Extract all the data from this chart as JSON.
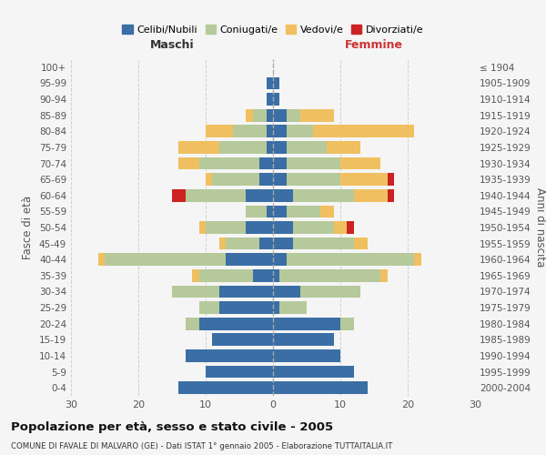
{
  "age_groups": [
    "0-4",
    "5-9",
    "10-14",
    "15-19",
    "20-24",
    "25-29",
    "30-34",
    "35-39",
    "40-44",
    "45-49",
    "50-54",
    "55-59",
    "60-64",
    "65-69",
    "70-74",
    "75-79",
    "80-84",
    "85-89",
    "90-94",
    "95-99",
    "100+"
  ],
  "birth_years": [
    "2000-2004",
    "1995-1999",
    "1990-1994",
    "1985-1989",
    "1980-1984",
    "1975-1979",
    "1970-1974",
    "1965-1969",
    "1960-1964",
    "1955-1959",
    "1950-1954",
    "1945-1949",
    "1940-1944",
    "1935-1939",
    "1930-1934",
    "1925-1929",
    "1920-1924",
    "1915-1919",
    "1910-1914",
    "1905-1909",
    "≤ 1904"
  ],
  "colors": {
    "celibi": "#3a6ea5",
    "coniugati": "#b5c99a",
    "vedovi": "#f0c060",
    "divorziati": "#cc2222"
  },
  "males": {
    "celibi": [
      14,
      10,
      13,
      9,
      11,
      8,
      8,
      3,
      7,
      2,
      4,
      1,
      4,
      2,
      2,
      1,
      1,
      1,
      1,
      1,
      0
    ],
    "coniugati": [
      0,
      0,
      0,
      0,
      2,
      3,
      7,
      8,
      18,
      5,
      6,
      3,
      9,
      7,
      9,
      7,
      5,
      2,
      0,
      0,
      0
    ],
    "vedovi": [
      0,
      0,
      0,
      0,
      0,
      0,
      0,
      1,
      1,
      1,
      1,
      0,
      0,
      1,
      3,
      6,
      4,
      1,
      0,
      0,
      0
    ],
    "divorziati": [
      0,
      0,
      0,
      0,
      0,
      0,
      0,
      0,
      0,
      0,
      0,
      0,
      2,
      0,
      0,
      0,
      0,
      0,
      0,
      0,
      0
    ]
  },
  "females": {
    "celibi": [
      14,
      12,
      10,
      9,
      10,
      1,
      4,
      1,
      2,
      3,
      3,
      2,
      3,
      2,
      2,
      2,
      2,
      2,
      1,
      1,
      0
    ],
    "coniugati": [
      0,
      0,
      0,
      0,
      2,
      4,
      9,
      15,
      19,
      9,
      6,
      5,
      9,
      8,
      8,
      6,
      4,
      2,
      0,
      0,
      0
    ],
    "vedovi": [
      0,
      0,
      0,
      0,
      0,
      0,
      0,
      1,
      1,
      2,
      2,
      2,
      5,
      7,
      6,
      5,
      15,
      5,
      0,
      0,
      0
    ],
    "divorziati": [
      0,
      0,
      0,
      0,
      0,
      0,
      0,
      0,
      0,
      0,
      1,
      0,
      1,
      1,
      0,
      0,
      0,
      0,
      0,
      0,
      0
    ]
  },
  "title": "Popolazione per età, sesso e stato civile - 2005",
  "subtitle": "COMUNE DI FAVALE DI MALVARO (GE) - Dati ISTAT 1° gennaio 2005 - Elaborazione TUTTAITALIA.IT",
  "xlabel_left": "Maschi",
  "xlabel_right": "Femmine",
  "ylabel_left": "Fasce di età",
  "ylabel_right": "Anni di nascita",
  "xlim": 30,
  "bg_color": "#f5f5f5",
  "grid_color": "#cccccc"
}
